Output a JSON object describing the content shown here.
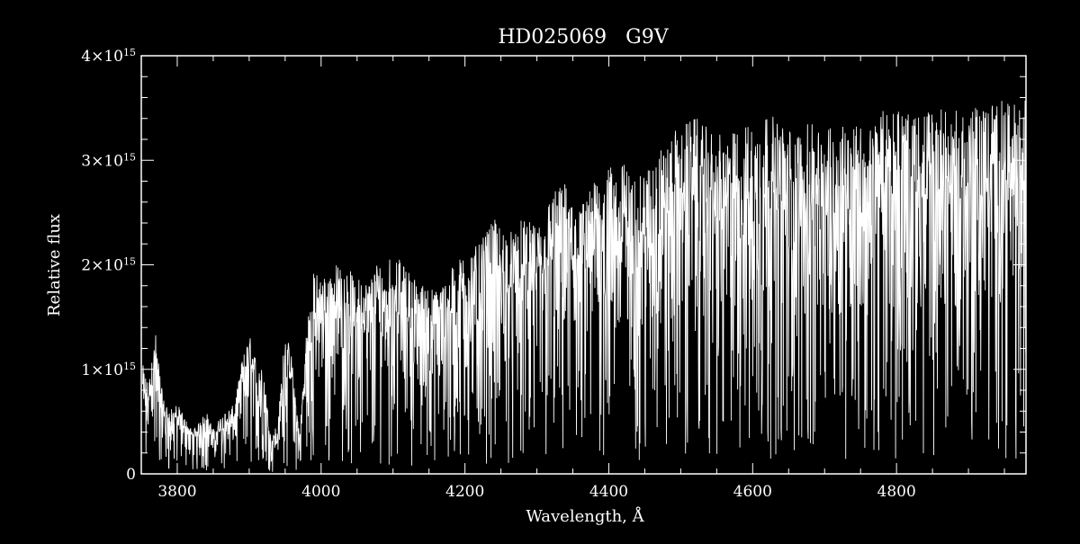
{
  "chart_data": {
    "type": "line",
    "title": "HD025069   G9V",
    "xlabel": "Wavelength, Å",
    "ylabel": "Relative flux",
    "xlim": [
      3750,
      4980
    ],
    "ylim": [
      0,
      4000000000000000.0
    ],
    "grid": false,
    "legend": "none",
    "x_ticks": [
      {
        "value": 3800,
        "label": "3800"
      },
      {
        "value": 4000,
        "label": "4000"
      },
      {
        "value": 4200,
        "label": "4200"
      },
      {
        "value": 4400,
        "label": "4400"
      },
      {
        "value": 4600,
        "label": "4600"
      },
      {
        "value": 4800,
        "label": "4800"
      }
    ],
    "y_ticks": [
      {
        "value": 0,
        "mantissa": "0",
        "exponent": ""
      },
      {
        "value": 1000000000000000.0,
        "mantissa": "1×10",
        "exponent": "15"
      },
      {
        "value": 2000000000000000.0,
        "mantissa": "2×10",
        "exponent": "15"
      },
      {
        "value": 3000000000000000.0,
        "mantissa": "3×10",
        "exponent": "15"
      },
      {
        "value": 4000000000000000.0,
        "mantissa": "4×10",
        "exponent": "15"
      }
    ],
    "series": [
      {
        "color": "#ffffff",
        "x": [
          3750,
          3760,
          3770,
          3780,
          3790,
          3800,
          3810,
          3820,
          3830,
          3840,
          3850,
          3860,
          3870,
          3880,
          3890,
          3900,
          3910,
          3920,
          3930,
          3940,
          3950,
          3960,
          3970,
          3980,
          3990,
          4000,
          4020,
          4040,
          4060,
          4080,
          4100,
          4120,
          4140,
          4160,
          4180,
          4200,
          4220,
          4240,
          4260,
          4280,
          4300,
          4320,
          4340,
          4360,
          4380,
          4400,
          4420,
          4440,
          4460,
          4480,
          4500,
          4520,
          4540,
          4560,
          4580,
          4600,
          4620,
          4640,
          4660,
          4680,
          4700,
          4720,
          4740,
          4760,
          4780,
          4800,
          4820,
          4840,
          4860,
          4880,
          4900,
          4920,
          4940,
          4960,
          4980
        ],
        "y": [
          900000000000000.0,
          700000000000000.0,
          1100000000000000.0,
          600000000000000.0,
          500000000000000.0,
          550000000000000.0,
          450000000000000.0,
          350000000000000.0,
          400000000000000.0,
          500000000000000.0,
          350000000000000.0,
          450000000000000.0,
          500000000000000.0,
          550000000000000.0,
          900000000000000.0,
          1100000000000000.0,
          900000000000000.0,
          800000000000000.0,
          300000000000000.0,
          400000000000000.0,
          1150000000000000.0,
          900000000000000.0,
          300000000000000.0,
          1200000000000000.0,
          1600000000000000.0,
          1550000000000000.0,
          1650000000000000.0,
          1600000000000000.0,
          1500000000000000.0,
          1700000000000000.0,
          1750000000000000.0,
          1600000000000000.0,
          1500000000000000.0,
          1450000000000000.0,
          1600000000000000.0,
          1750000000000000.0,
          1800000000000000.0,
          2000000000000000.0,
          1900000000000000.0,
          2000000000000000.0,
          1950000000000000.0,
          2200000000000000.0,
          2300000000000000.0,
          2100000000000000.0,
          2300000000000000.0,
          2400000000000000.0,
          2450000000000000.0,
          2300000000000000.0,
          2500000000000000.0,
          2600000000000000.0,
          2750000000000000.0,
          2800000000000000.0,
          2700000000000000.0,
          2650000000000000.0,
          2700000000000000.0,
          2800000000000000.0,
          2850000000000000.0,
          2750000000000000.0,
          2700000000000000.0,
          2750000000000000.0,
          2700000000000000.0,
          2750000000000000.0,
          2800000000000000.0,
          2700000000000000.0,
          2850000000000000.0,
          2900000000000000.0,
          2800000000000000.0,
          2850000000000000.0,
          2900000000000000.0,
          2850000000000000.0,
          2850000000000000.0,
          2900000000000000.0,
          2950000000000000.0,
          2900000000000000.0,
          2950000000000000.0
        ]
      }
    ]
  }
}
